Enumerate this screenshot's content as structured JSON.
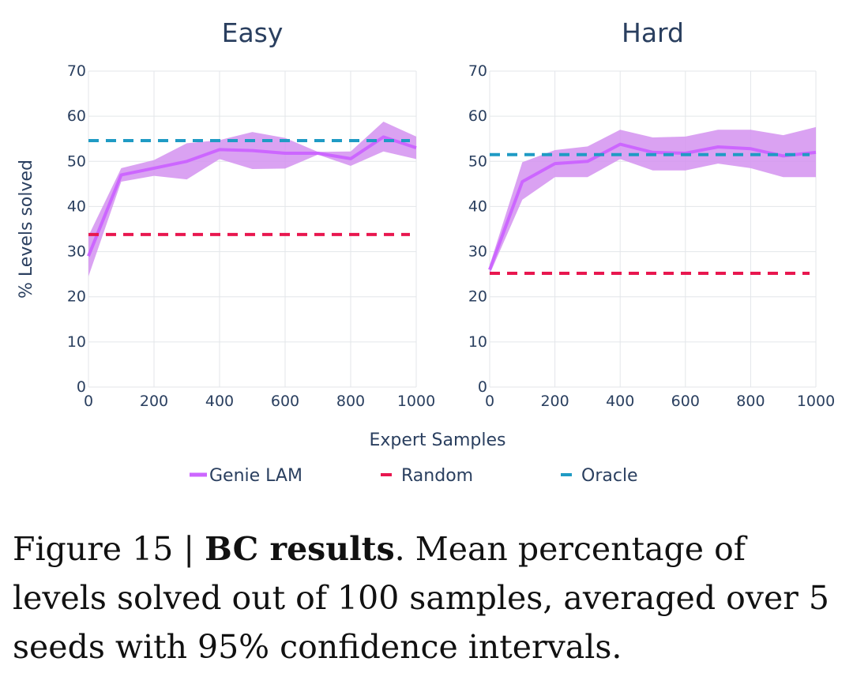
{
  "chart_data": {
    "type": "line",
    "x_label": "Expert Samples",
    "y_label": "% Levels solved",
    "ylim": [
      0,
      70
    ],
    "xlim": [
      0,
      1000
    ],
    "x_ticks": [
      0,
      200,
      400,
      600,
      800,
      1000
    ],
    "y_ticks": [
      0,
      10,
      20,
      30,
      40,
      50,
      60,
      70
    ],
    "grid": true,
    "legend_position": "bottom",
    "colors": {
      "genie": "#cc66ff",
      "genie_band": "#d492f0",
      "random": "#e8174f",
      "oracle": "#1f9bc4"
    },
    "legend": [
      "Genie LAM",
      "Random",
      "Oracle"
    ],
    "panels": [
      {
        "title": "Easy",
        "series": [
          {
            "name": "Genie LAM",
            "kind": "mean_ci",
            "x": [
              0,
              100,
              200,
              300,
              400,
              500,
              600,
              700,
              800,
              900,
              1000
            ],
            "y": [
              29,
              47,
              48.5,
              50,
              52.6,
              52.4,
              51.8,
              51.8,
              50.6,
              55.4,
              53
            ],
            "lower": [
              24.5,
              45.5,
              46.8,
              46,
              50.5,
              48.3,
              48.4,
              51.5,
              49,
              52.2,
              50.5
            ],
            "upper": [
              33.5,
              48.5,
              50.3,
              54,
              54.7,
              56.5,
              55.2,
              52.1,
              52.2,
              58.8,
              55.5
            ]
          },
          {
            "name": "Random",
            "kind": "hline",
            "y": 33.8
          },
          {
            "name": "Oracle",
            "kind": "hline",
            "y": 54.6
          }
        ]
      },
      {
        "title": "Hard",
        "series": [
          {
            "name": "Genie LAM",
            "kind": "mean_ci",
            "x": [
              0,
              100,
              200,
              300,
              400,
              500,
              600,
              700,
              800,
              900,
              1000
            ],
            "y": [
              26,
              45.5,
              49.5,
              50,
              53.8,
              52,
              51.8,
              53.2,
              52.8,
              51.2,
              52
            ],
            "lower": [
              25,
              41.5,
              46.5,
              46.5,
              50.5,
              48,
              48,
              49.5,
              48.5,
              46.5,
              46.5
            ],
            "upper": [
              27,
              49.8,
              52.5,
              53.3,
              57,
              55.3,
              55.5,
              57,
              57,
              55.8,
              57.6
            ]
          },
          {
            "name": "Random",
            "kind": "hline",
            "y": 25.2
          },
          {
            "name": "Oracle",
            "kind": "hline",
            "y": 51.5
          }
        ]
      }
    ]
  },
  "caption": {
    "prefix": "Figure 15 | ",
    "bold": "BC results",
    "text": ". Mean percentage of levels solved out of 100 samples, averaged over 5 seeds with 95% confidence intervals."
  }
}
